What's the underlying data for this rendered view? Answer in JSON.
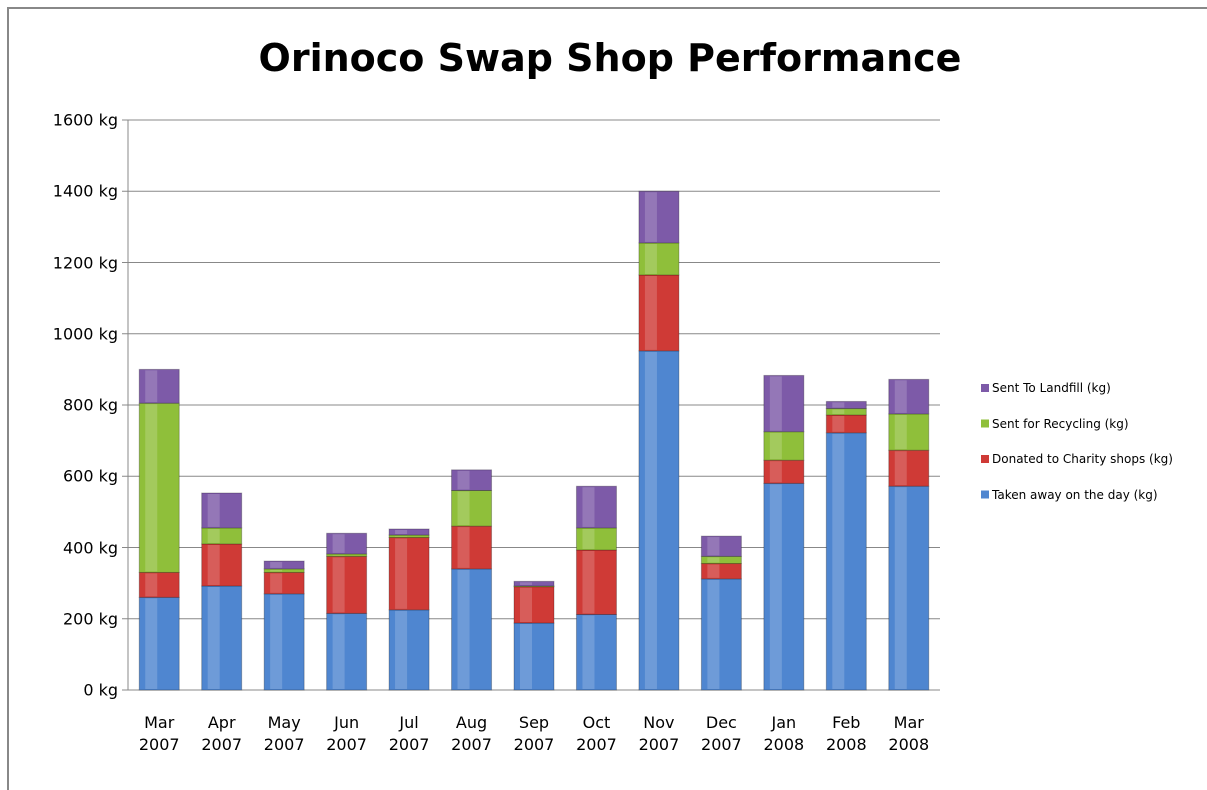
{
  "chart_data": {
    "type": "stacked_bar",
    "title": "Orinoco Swap Shop Performance",
    "categories": [
      "Mar 2007",
      "Apr 2007",
      "May 2007",
      "Jun 2007",
      "Jul 2007",
      "Aug 2007",
      "Sep 2007",
      "Oct 2007",
      "Nov 2007",
      "Dec 2007",
      "Jan 2008",
      "Feb 2008",
      "Mar 2008"
    ],
    "series": [
      {
        "name": "Taken away on the day (kg)",
        "color": "#4f86d0",
        "values": [
          260,
          292,
          270,
          215,
          225,
          340,
          188,
          212,
          952,
          312,
          580,
          722,
          572
        ]
      },
      {
        "name": "Donated to Charity shops (kg)",
        "color": "#cf3a36",
        "values": [
          70,
          118,
          60,
          160,
          203,
          120,
          102,
          181,
          213,
          43,
          65,
          50,
          101
        ]
      },
      {
        "name": "Sent for Recycling (kg)",
        "color": "#8fbf3a",
        "values": [
          475,
          45,
          10,
          7,
          7,
          100,
          2,
          62,
          90,
          20,
          80,
          18,
          102
        ]
      },
      {
        "name": "Sent To Landfill (kg)",
        "color": "#7d5aa8",
        "values": [
          95,
          98,
          22,
          58,
          17,
          58,
          13,
          117,
          145,
          57,
          158,
          20,
          97
        ]
      }
    ],
    "ylim": [
      0,
      1600
    ],
    "yticks": [
      {
        "value": 0,
        "label": "0 kg"
      },
      {
        "value": 200,
        "label": "200 kg"
      },
      {
        "value": 400,
        "label": "400 kg"
      },
      {
        "value": 600,
        "label": "600 kg"
      },
      {
        "value": 800,
        "label": "800 kg"
      },
      {
        "value": 1000,
        "label": "1000 kg"
      },
      {
        "value": 1200,
        "label": "1200 kg"
      },
      {
        "value": 1400,
        "label": "1400 kg"
      },
      {
        "value": 1600,
        "label": "1600 kg"
      }
    ],
    "grid": true,
    "legend": "right"
  }
}
